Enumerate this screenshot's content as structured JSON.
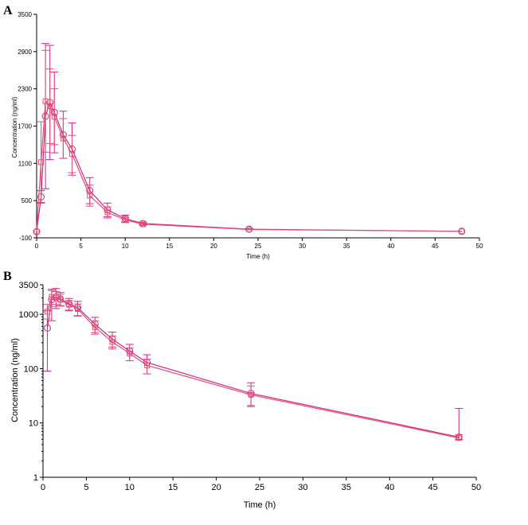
{
  "chart_data": [
    {
      "panel": "A",
      "type": "line",
      "xlabel": "Time (h)",
      "ylabel": "Concentration (ng/ml)",
      "xlim": [
        0,
        50
      ],
      "ylim": [
        -100,
        3500
      ],
      "yscale": "linear",
      "xticks": [
        0,
        5,
        10,
        15,
        20,
        25,
        30,
        35,
        40,
        45,
        50
      ],
      "yticks": [
        -100,
        500,
        1100,
        1700,
        2300,
        2900,
        3500
      ],
      "grid": false,
      "colors": {
        "series_a": "#e0208a",
        "series_b": "#e05070"
      },
      "series": [
        {
          "marker": "circle",
          "x": [
            0,
            0.5,
            1,
            1.5,
            2,
            3,
            4,
            6,
            8,
            10,
            12,
            24,
            48
          ],
          "y": [
            0,
            560,
            1860,
            2080,
            1920,
            1560,
            1330,
            660,
            350,
            210,
            130,
            40,
            5
          ],
          "err": [
            0,
            100,
            1170,
            920,
            650,
            380,
            420,
            210,
            110,
            55,
            25,
            8,
            3
          ]
        },
        {
          "marker": "square",
          "x": [
            0,
            0.5,
            1,
            1.5,
            2,
            3,
            4,
            6,
            8,
            10,
            12,
            24,
            48
          ],
          "y": [
            0,
            1120,
            2100,
            2020,
            1850,
            1500,
            1250,
            580,
            310,
            190,
            120,
            35,
            5
          ],
          "err": [
            0,
            650,
            820,
            600,
            450,
            320,
            300,
            170,
            90,
            45,
            20,
            6,
            3
          ]
        }
      ]
    },
    {
      "panel": "B",
      "type": "line",
      "xlabel": "Time (h)",
      "ylabel": "Concentration (ng/ml)",
      "xlim": [
        0,
        50
      ],
      "ylim": [
        1,
        3500
      ],
      "yscale": "log",
      "xticks": [
        0,
        5,
        10,
        15,
        20,
        25,
        30,
        35,
        40,
        45,
        50
      ],
      "yticks": [
        1,
        10,
        100,
        1000,
        3500
      ],
      "grid": false,
      "colors": {
        "series_a": "#e0208a",
        "series_b": "#e05070"
      },
      "series": [
        {
          "marker": "circle",
          "x": [
            0.5,
            1,
            1.5,
            2,
            3,
            4,
            6,
            8,
            10,
            12,
            24,
            48
          ],
          "y": [
            560,
            1860,
            2080,
            1920,
            1560,
            1330,
            660,
            350,
            210,
            130,
            35,
            5.5
          ],
          "err_lo": [
            470,
            1100,
            800,
            500,
            400,
            400,
            200,
            100,
            70,
            50,
            15,
            0.5
          ],
          "err_hi": [
            600,
            900,
            900,
            600,
            400,
            400,
            220,
            120,
            70,
            50,
            20,
            13
          ]
        },
        {
          "marker": "square",
          "x": [
            0.5,
            1,
            1.5,
            2,
            3,
            4,
            6,
            8,
            10,
            12,
            24,
            48
          ],
          "y": [
            1120,
            2100,
            2020,
            1850,
            1500,
            1250,
            580,
            310,
            190,
            115,
            33,
            5.3
          ],
          "err_lo": [
            300,
            700,
            500,
            400,
            300,
            300,
            150,
            80,
            50,
            35,
            12,
            0.4
          ],
          "err_hi": [
            400,
            800,
            600,
            500,
            300,
            300,
            180,
            90,
            50,
            35,
            15,
            0.8
          ]
        }
      ]
    }
  ],
  "labels": {
    "panel_a": "A",
    "panel_b": "B",
    "a_xlabel": "Time (h)",
    "a_ylabel": "Concentration (ng/ml)",
    "b_xlabel": "Time (h)",
    "b_ylabel": "Concentration (ng/ml)",
    "a_xticks": [
      "0",
      "5",
      "10",
      "15",
      "20",
      "25",
      "30",
      "35",
      "40",
      "45",
      "50"
    ],
    "a_yticks": [
      "-100",
      "500",
      "1100",
      "1700",
      "2300",
      "2900",
      "3500"
    ],
    "b_xticks": [
      "0",
      "5",
      "10",
      "15",
      "20",
      "25",
      "30",
      "35",
      "40",
      "45",
      "50"
    ],
    "b_yticks": [
      "1",
      "10",
      "100",
      "1000",
      "3500"
    ]
  }
}
